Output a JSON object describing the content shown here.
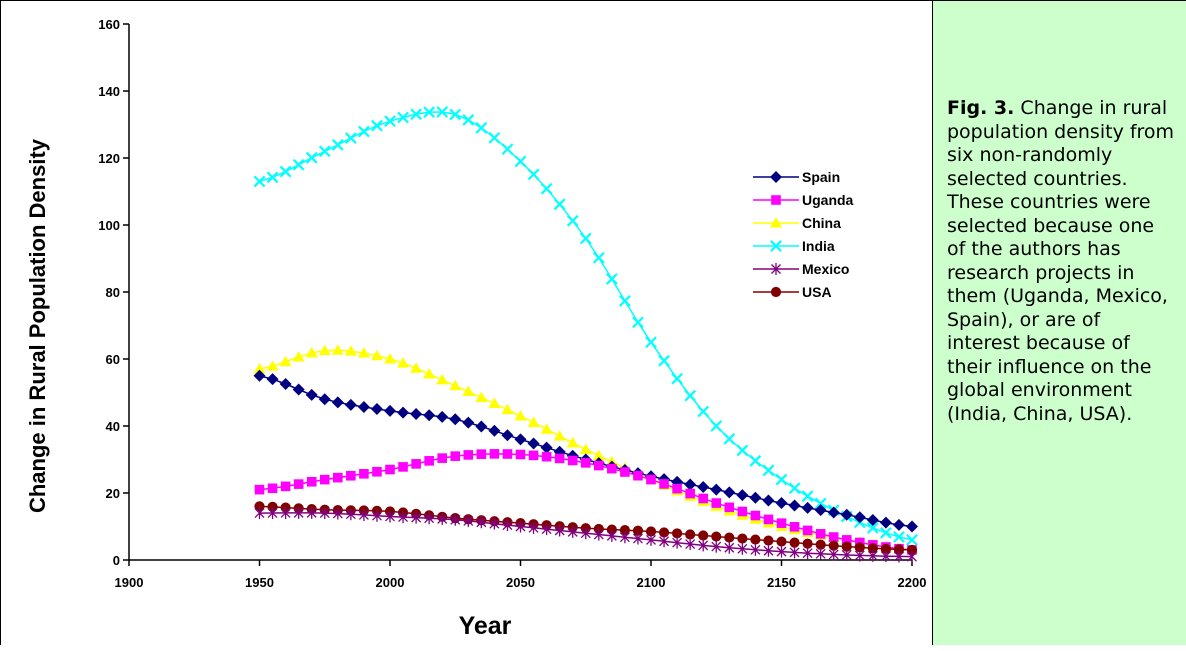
{
  "caption": {
    "fig_label": "Fig. 3.",
    "text": "Change in rural population density from six non-randomly selected countries. These countries were selected because one of the authors has research projects in them (Uganda, Mexico, Spain), or are of interest because of their influence on the global environment (India, China, USA)."
  },
  "chart_data": {
    "type": "line",
    "xlabel": "Year",
    "ylabel": "Change in Rural Population Density",
    "xlim": [
      1900,
      2200
    ],
    "ylim": [
      0,
      160
    ],
    "x_ticks": [
      1900,
      1950,
      2000,
      2050,
      2100,
      2150,
      2200
    ],
    "y_ticks": [
      0,
      20,
      40,
      60,
      80,
      100,
      120,
      140,
      160
    ],
    "legend_position": "right",
    "x": [
      1950,
      1975,
      2000,
      2025,
      2050,
      2075,
      2100,
      2125,
      2150,
      2175,
      2200
    ],
    "series": [
      {
        "name": "Spain",
        "color": "#000080",
        "marker": "diamond",
        "values": [
          55,
          48,
          44.5,
          42,
          36,
          30,
          25,
          21,
          17,
          13.5,
          10
        ]
      },
      {
        "name": "Uganda",
        "color": "#ff00ff",
        "marker": "square",
        "values": [
          21,
          24,
          27,
          31,
          31.5,
          29,
          24,
          17,
          11,
          6,
          3
        ]
      },
      {
        "name": "China",
        "color": "#ffff00",
        "marker": "triangle",
        "values": [
          57,
          62.5,
          60,
          52,
          43,
          33,
          24,
          16,
          10,
          6,
          3
        ]
      },
      {
        "name": "India",
        "color": "#00ffff",
        "marker": "x",
        "values": [
          113,
          122,
          131,
          133,
          119,
          96,
          65,
          40,
          24,
          13,
          6
        ]
      },
      {
        "name": "Mexico",
        "color": "#800080",
        "marker": "star",
        "values": [
          14,
          14,
          13,
          12,
          10,
          8,
          6,
          4,
          2.5,
          1.5,
          1
        ]
      },
      {
        "name": "USA",
        "color": "#800000",
        "marker": "circle",
        "values": [
          16,
          15,
          14.5,
          12.5,
          11,
          9.5,
          8.5,
          7,
          5.5,
          4,
          3
        ]
      }
    ]
  }
}
